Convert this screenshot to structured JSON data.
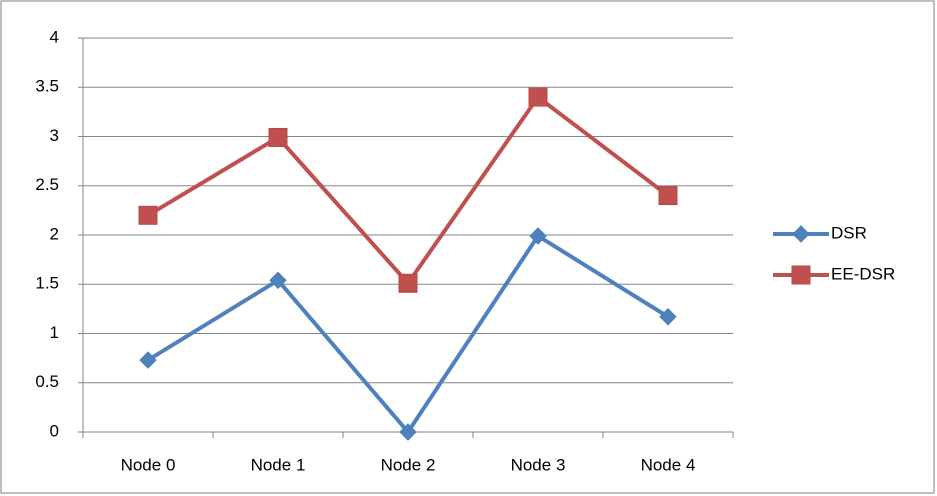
{
  "chart_data": {
    "type": "line",
    "categories": [
      "Node 0",
      "Node 1",
      "Node 2",
      "Node 3",
      "Node 4"
    ],
    "series": [
      {
        "name": "DSR",
        "color": "#4f81bd",
        "marker": "diamond",
        "values": [
          0.73,
          1.54,
          0,
          1.99,
          1.17
        ]
      },
      {
        "name": "EE-DSR",
        "color": "#c0504d",
        "marker": "square",
        "values": [
          2.2,
          2.99,
          1.51,
          3.4,
          2.4
        ]
      }
    ],
    "ylim": [
      0,
      4
    ],
    "yticks": [
      0,
      0.5,
      1,
      1.5,
      2,
      2.5,
      3,
      3.5,
      4
    ],
    "grid": true,
    "legend": "right"
  }
}
